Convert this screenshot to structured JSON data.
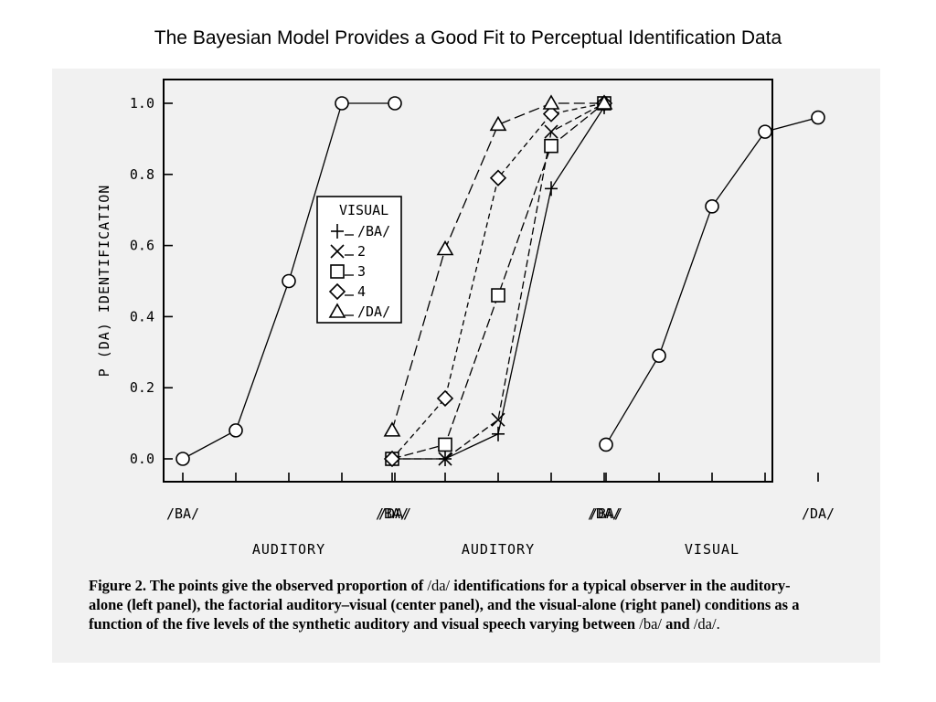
{
  "slide": {
    "title": "The Bayesian Model Provides a Good Fit to Perceptual Identification Data"
  },
  "caption": {
    "label": "Figure 2.",
    "text_a": " The points give the observed proportion of ",
    "da1": "/da/",
    "text_b": " identifications for a typical observer in the auditory-alone (left panel), the factorial auditory–visual (center panel), and the visual-alone (right panel) conditions as a function of the five levels of the synthetic auditory and visual speech varying between ",
    "ba": "/ba/",
    "and": " and ",
    "da2": "/da/",
    "end": "."
  },
  "chart_data": {
    "type": "line",
    "ylabel": "P (DA) IDENTIFICATION",
    "ylim": [
      0,
      1
    ],
    "yticks": [
      "0.0",
      "0.2",
      "0.4",
      "0.6",
      "0.8",
      "1.0"
    ],
    "grid": false,
    "panels": [
      {
        "name": "auditory-alone",
        "xlabel": "AUDITORY",
        "ticklabels": [
          "/BA/",
          "/DA/"
        ],
        "series": [
          {
            "marker": "circle",
            "values": [
              0.0,
              0.08,
              0.5,
              1.0,
              1.0
            ]
          }
        ]
      },
      {
        "name": "factorial auditory-visual",
        "xlabel": "AUDITORY",
        "ticklabels": [
          "/BA/",
          "/DA/"
        ],
        "legend": {
          "title": "VISUAL",
          "position": "upper-left",
          "entries": [
            "/BA/",
            "2",
            "3",
            "4",
            "/DA/"
          ]
        },
        "series": [
          {
            "name": "/BA/",
            "marker": "plus",
            "values": [
              0.0,
              0.0,
              0.07,
              0.76,
              0.99
            ]
          },
          {
            "name": "2",
            "marker": "x",
            "values": [
              0.0,
              0.0,
              0.11,
              0.92,
              1.0
            ]
          },
          {
            "name": "3",
            "marker": "square",
            "values": [
              0.0,
              0.04,
              0.46,
              0.88,
              1.0
            ]
          },
          {
            "name": "4",
            "marker": "diamond",
            "values": [
              0.0,
              0.17,
              0.79,
              0.97,
              1.0
            ]
          },
          {
            "name": "/DA/",
            "marker": "triangle",
            "values": [
              0.08,
              0.59,
              0.94,
              1.0,
              1.0
            ]
          }
        ]
      },
      {
        "name": "visual-alone",
        "xlabel": "VISUAL",
        "ticklabels": [
          "/BA/",
          "/DA/"
        ],
        "series": [
          {
            "marker": "circle",
            "values": [
              0.04,
              0.29,
              0.71,
              0.92,
              0.96
            ]
          }
        ]
      }
    ]
  }
}
